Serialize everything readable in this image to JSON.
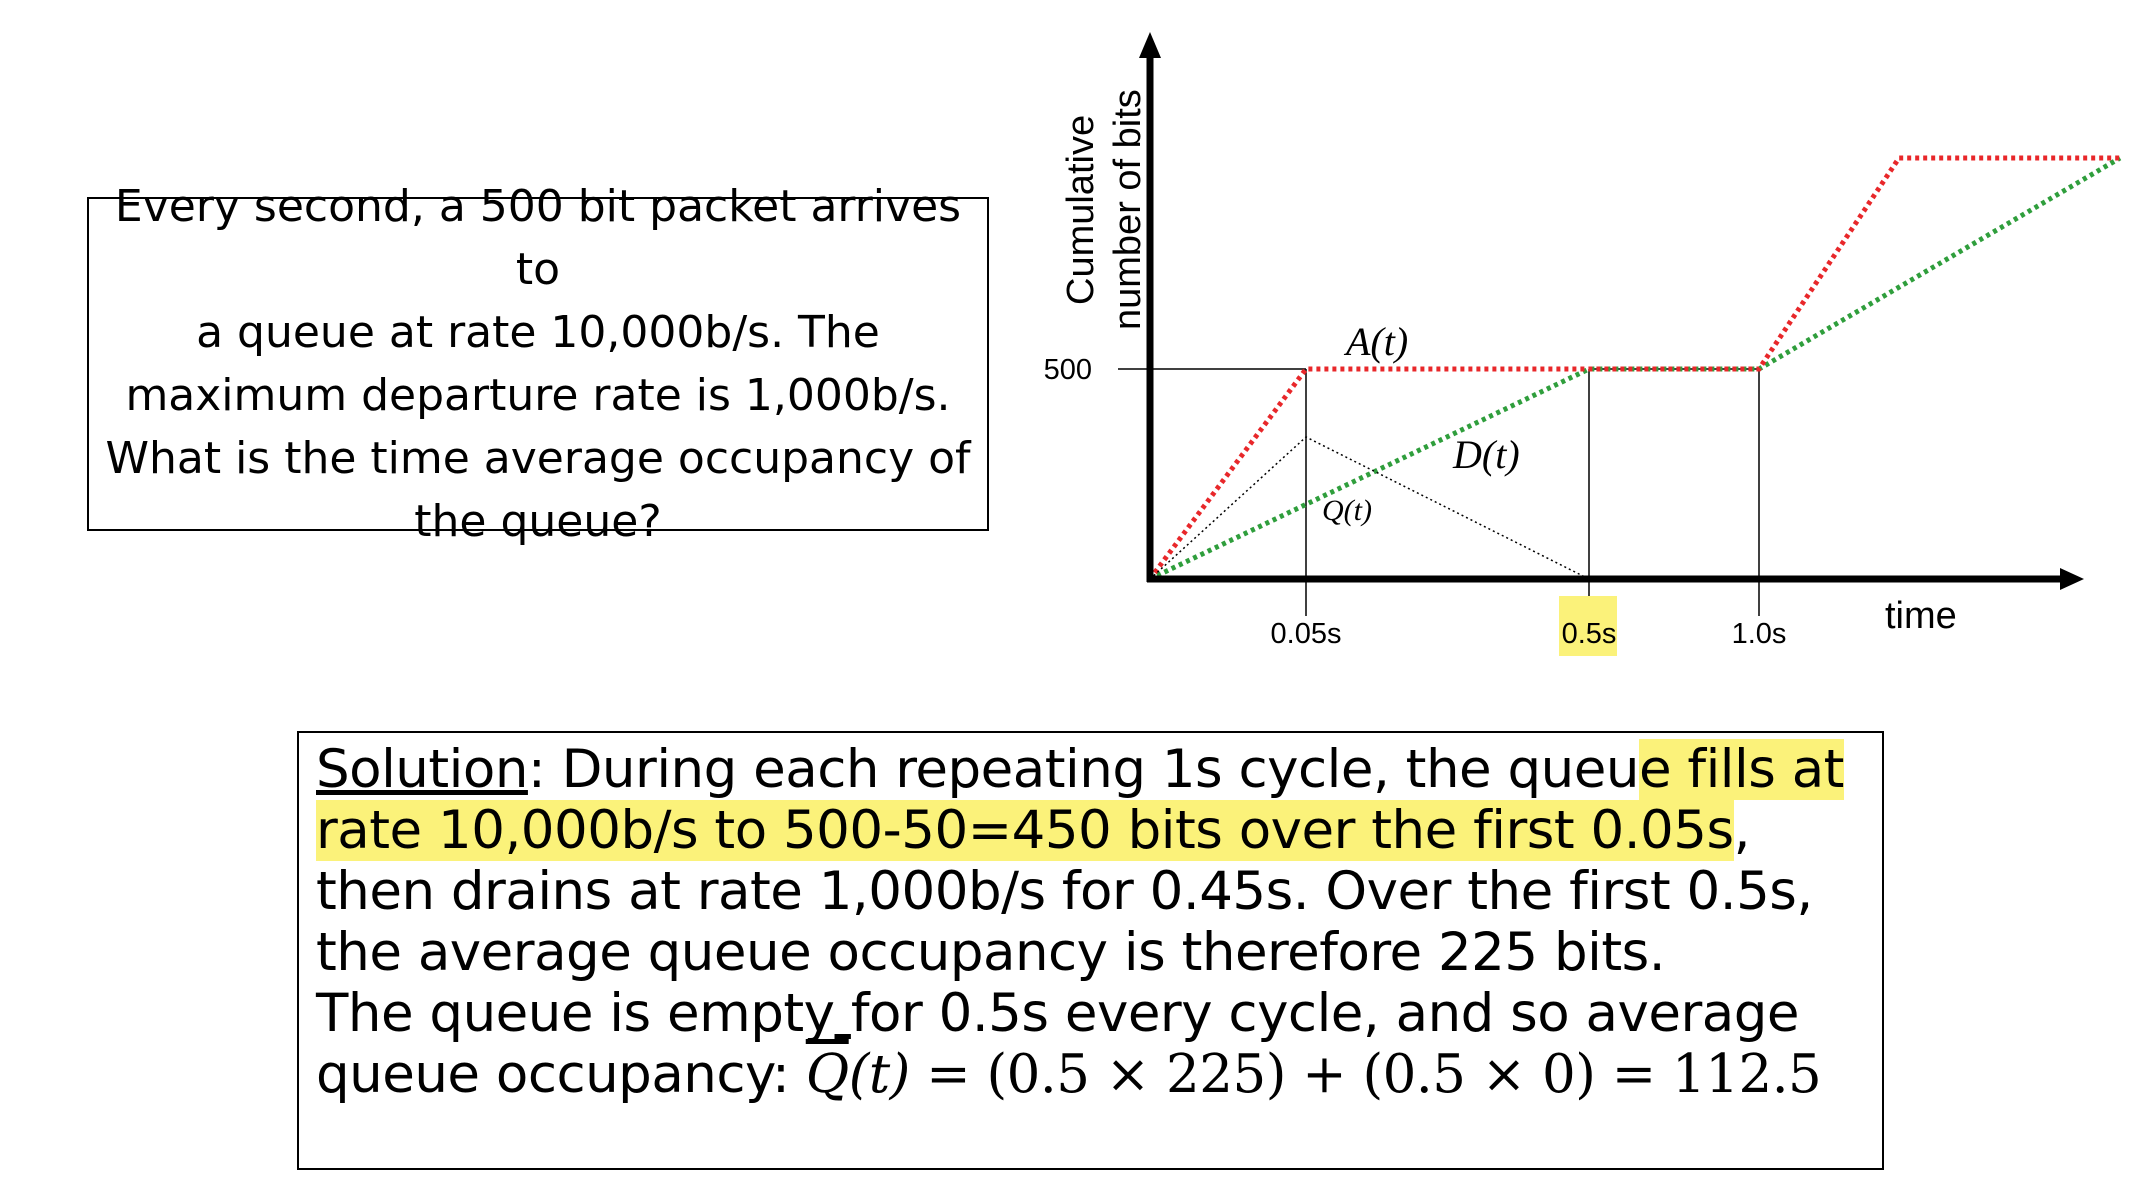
{
  "question": {
    "lines": [
      "Every second, a 500 bit packet arrives to",
      "a queue at rate 10,000b/s. The",
      "maximum departure rate is 1,000b/s.",
      "What is the time average occupancy of",
      "the queue?"
    ]
  },
  "chart_data": {
    "type": "line",
    "ylabel_line1": "Cumulative",
    "ylabel_line2": "number of bits",
    "xlabel": "time",
    "y_ticks": [
      {
        "value": 500,
        "label": "500"
      }
    ],
    "x_ticks": [
      {
        "value": 0.05,
        "label": "0.05s",
        "highlight": false
      },
      {
        "value": 0.5,
        "label": "0.5s",
        "highlight": true
      },
      {
        "value": 1.0,
        "label": "1.0s",
        "highlight": false
      }
    ],
    "series": [
      {
        "name": "A(t)",
        "color": "#e8272a",
        "style": "dotted",
        "points": [
          [
            0,
            0
          ],
          [
            0.05,
            500
          ],
          [
            1.0,
            500
          ],
          [
            1.05,
            1000
          ],
          [
            1.55,
            1000
          ]
        ]
      },
      {
        "name": "D(t)",
        "color": "#2f9e3c",
        "style": "dotted",
        "points": [
          [
            0,
            0
          ],
          [
            0.5,
            500
          ],
          [
            1.0,
            500
          ],
          [
            1.55,
            1000
          ]
        ]
      },
      {
        "name": "Q(t)",
        "color": "#000000",
        "style": "dotted-thin",
        "points": [
          [
            0,
            0
          ],
          [
            0.05,
            450
          ],
          [
            0.5,
            0
          ]
        ]
      }
    ],
    "highlight_color": "#fbf27a"
  },
  "solution": {
    "label": "Solution",
    "p1_plain": ": During each repeating 1s cycle, the queu",
    "p1_hl": "e fills at rate 10,000b/s to 500-50=450 bits over the first 0.05s",
    "p1_end": ", then drains at rate 1,000b/s for 0.45s. Over the first 0.5s, the average queue occupancy is therefore 225 bits.",
    "p2_a": "The queue is empty",
    "p2_space": " ",
    "p2_b": "for 0.5s every cycle, and so average queue occupancy: ",
    "formula_q": "Q",
    "formula_t": "(t)",
    "formula_rest": " = (0.5 × 225) + (0.5 × 0) = 112.5"
  }
}
